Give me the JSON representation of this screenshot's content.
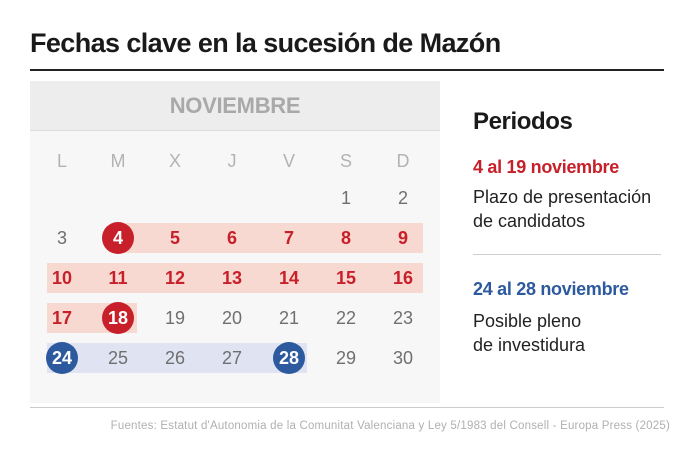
{
  "title": "Fechas clave en la sucesión de Mazón",
  "calendar": {
    "month": "NOVIEMBRE",
    "weekdays": [
      "L",
      "M",
      "X",
      "J",
      "V",
      "S",
      "D"
    ],
    "weeks": [
      [
        "",
        "",
        "",
        "",
        "",
        "1",
        "2"
      ],
      [
        "3",
        "4",
        "5",
        "6",
        "7",
        "8",
        "9"
      ],
      [
        "10",
        "11",
        "12",
        "13",
        "14",
        "15",
        "16"
      ],
      [
        "17",
        "18",
        "19",
        "20",
        "21",
        "22",
        "23"
      ],
      [
        "24",
        "25",
        "26",
        "27",
        "28",
        "29",
        "30"
      ]
    ],
    "period1_days": [
      4,
      19
    ],
    "period2_days": [
      24,
      28
    ],
    "colors": {
      "red": "#c8202a",
      "blue": "#2d5a9e",
      "red_band": "#f8d9d1",
      "blue_band": "#dfe3f2"
    }
  },
  "periods": {
    "heading": "Periodos",
    "items": [
      {
        "range": "4 al 19 noviembre",
        "description_lines": [
          "Plazo de presentación",
          "de candidatos"
        ]
      },
      {
        "range": "24 al 28 noviembre",
        "description_lines": [
          "Posible pleno",
          "de investidura"
        ]
      }
    ]
  },
  "source": "Fuentes: Estatut d'Autonomia de la Comunitat Valenciana y Ley 5/1983 del Consell - Europa Press (2025)"
}
